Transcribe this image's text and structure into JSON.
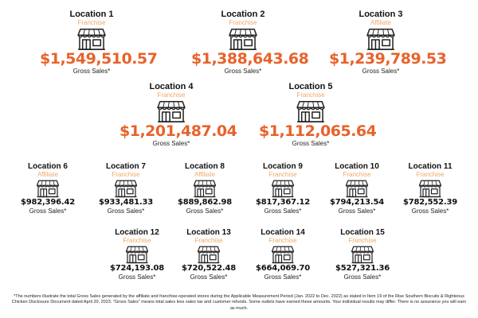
{
  "locations": [
    {
      "name": "Location 1",
      "type": "Franchise",
      "sales": "$1,549,510.57",
      "label": "Gross Sales*"
    },
    {
      "name": "Location 2",
      "type": "Franchise",
      "sales": "$1,388,643.68",
      "label": "Gross Sales*"
    },
    {
      "name": "Location 3",
      "type": "Affiliate",
      "sales": "$1,239,789.53",
      "label": "Gross Sales*"
    },
    {
      "name": "Location 4",
      "type": "Franchise",
      "sales": "$1,201,487.04",
      "label": "Gross Sales*"
    },
    {
      "name": "Location 5",
      "type": "Franchise",
      "sales": "$1,112,065.64",
      "label": "Gross Sales*"
    },
    {
      "name": "Location 6",
      "type": "Affiliate",
      "sales": "$982,396.42",
      "label": "Gross Sales*"
    },
    {
      "name": "Location 7",
      "type": "Franchise",
      "sales": "$933,481.33",
      "label": "Gross Sales*"
    },
    {
      "name": "Location 8",
      "type": "Affiliate",
      "sales": "$889,862.98",
      "label": "Gross Sales*"
    },
    {
      "name": "Location 9",
      "type": "Franchise",
      "sales": "$817,367.12",
      "label": "Gross Sales*"
    },
    {
      "name": "Location 10",
      "type": "Franchise",
      "sales": "$794,213.54",
      "label": "Gross Sales*"
    },
    {
      "name": "Location 11",
      "type": "Franchise",
      "sales": "$782,552.39",
      "label": "Gross Sales*"
    },
    {
      "name": "Location 12",
      "type": "Franchise",
      "sales": "$724,193.08",
      "label": "Gross Sales*"
    },
    {
      "name": "Location 13",
      "type": "Franchise",
      "sales": "$720,522.48",
      "label": "Gross Sales*"
    },
    {
      "name": "Location 14",
      "type": "Franchise",
      "sales": "$664,069.70",
      "label": "Gross Sales*"
    },
    {
      "name": "Location 15",
      "type": "Franchise",
      "sales": "$527,321.36",
      "label": "Gross Sales*"
    }
  ],
  "footnote": "*The numbers illustrate the total Gross Sales generated by the affiliate and franchise-operated stores during the Applicable Measurement Period (Jan. 2022 to Dec. 2022) as stated in Item 19 of the Rise Southern Biscuits & Righteous Chicken Disclosure Document dated April 20, 2023. \"Gross Sales\" means total sales less sales tax and customer refunds. Some outlets have earned these amounts. Your individual results may differ. There is no assurance you will earn as much.",
  "colors": {
    "accent": "#e8622a",
    "type_label": "#f0a868",
    "text": "#111111"
  },
  "icon": "storefront-icon"
}
